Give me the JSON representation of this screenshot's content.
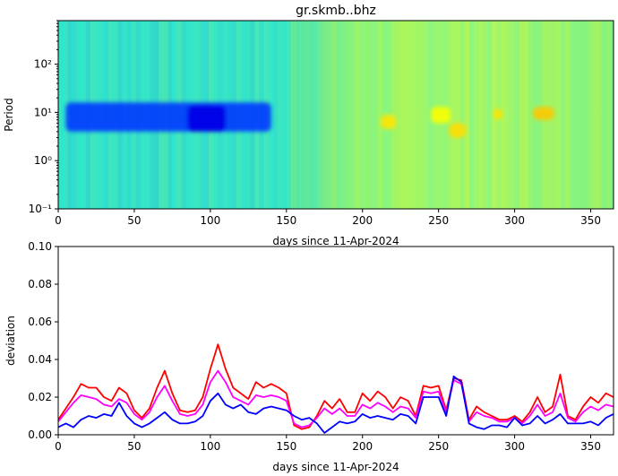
{
  "chart_data": [
    {
      "type": "heatmap",
      "title": "gr.skmb..bhz",
      "xlabel": "days since 11-Apr-2024",
      "ylabel": "Period",
      "xlim": [
        0,
        365
      ],
      "ylim": [
        0.1,
        800
      ],
      "yscale": "log",
      "xticks": [
        0,
        50,
        100,
        150,
        200,
        250,
        300,
        350
      ],
      "yticks": [
        {
          "value": 0.1,
          "label": "10⁻¹"
        },
        {
          "value": 1,
          "label": "10⁰"
        },
        {
          "value": 10,
          "label": "10¹"
        },
        {
          "value": 100,
          "label": "10²"
        }
      ],
      "colormap": "jet",
      "regions": [
        {
          "x": [
            5,
            140
          ],
          "period": [
            4,
            16
          ],
          "level": 0.18
        },
        {
          "x": [
            85,
            110
          ],
          "period": [
            4,
            14
          ],
          "level": 0.1
        },
        {
          "x": [
            212,
            222
          ],
          "period": [
            4.5,
            9
          ],
          "level": 0.65
        },
        {
          "x": [
            245,
            258
          ],
          "period": [
            6,
            13
          ],
          "level": 0.62
        },
        {
          "x": [
            257,
            268
          ],
          "period": [
            3,
            6
          ],
          "level": 0.66
        },
        {
          "x": [
            286,
            292
          ],
          "period": [
            7,
            12
          ],
          "level": 0.65
        },
        {
          "x": [
            312,
            326
          ],
          "period": [
            7,
            13
          ],
          "level": 0.68
        }
      ]
    },
    {
      "type": "line",
      "xlabel": "days since 11-Apr-2024",
      "ylabel": "deviation",
      "xlim": [
        0,
        365
      ],
      "ylim": [
        0,
        0.1
      ],
      "xticks": [
        0,
        50,
        100,
        150,
        200,
        250,
        300,
        350
      ],
      "yticks": [
        0.0,
        0.02,
        0.04,
        0.06,
        0.08,
        0.1
      ],
      "ytick_labels": [
        "0.00",
        "0.02",
        "0.04",
        "0.06",
        "0.08",
        "0.10"
      ],
      "x": [
        0,
        5,
        10,
        15,
        20,
        25,
        30,
        35,
        40,
        45,
        50,
        55,
        60,
        65,
        70,
        75,
        80,
        85,
        90,
        95,
        100,
        105,
        110,
        115,
        120,
        125,
        130,
        135,
        140,
        145,
        150,
        155,
        160,
        165,
        170,
        175,
        180,
        185,
        190,
        195,
        200,
        205,
        210,
        215,
        220,
        225,
        230,
        235,
        240,
        245,
        250,
        255,
        260,
        265,
        270,
        275,
        280,
        285,
        290,
        295,
        300,
        305,
        310,
        315,
        320,
        325,
        330,
        335,
        340,
        345,
        350,
        355,
        360,
        365
      ],
      "series": [
        {
          "color": "#ff0000",
          "values": [
            0.008,
            0.014,
            0.02,
            0.027,
            0.025,
            0.025,
            0.02,
            0.018,
            0.025,
            0.022,
            0.013,
            0.009,
            0.014,
            0.025,
            0.034,
            0.022,
            0.013,
            0.012,
            0.013,
            0.02,
            0.035,
            0.048,
            0.035,
            0.025,
            0.022,
            0.019,
            0.028,
            0.025,
            0.027,
            0.025,
            0.022,
            0.005,
            0.003,
            0.004,
            0.01,
            0.018,
            0.014,
            0.019,
            0.012,
            0.012,
            0.022,
            0.018,
            0.023,
            0.02,
            0.014,
            0.02,
            0.018,
            0.01,
            0.026,
            0.025,
            0.026,
            0.013,
            0.03,
            0.029,
            0.008,
            0.015,
            0.012,
            0.01,
            0.008,
            0.008,
            0.01,
            0.007,
            0.012,
            0.02,
            0.012,
            0.015,
            0.032,
            0.01,
            0.008,
            0.015,
            0.02,
            0.017,
            0.022,
            0.02
          ]
        },
        {
          "color": "#ff00ff",
          "values": [
            0.007,
            0.012,
            0.017,
            0.021,
            0.02,
            0.019,
            0.016,
            0.015,
            0.019,
            0.017,
            0.011,
            0.008,
            0.012,
            0.02,
            0.026,
            0.018,
            0.011,
            0.01,
            0.011,
            0.016,
            0.028,
            0.034,
            0.028,
            0.02,
            0.018,
            0.016,
            0.021,
            0.02,
            0.021,
            0.02,
            0.018,
            0.006,
            0.004,
            0.005,
            0.009,
            0.014,
            0.011,
            0.014,
            0.01,
            0.01,
            0.016,
            0.014,
            0.017,
            0.015,
            0.012,
            0.015,
            0.014,
            0.009,
            0.023,
            0.022,
            0.023,
            0.012,
            0.029,
            0.027,
            0.007,
            0.012,
            0.01,
            0.009,
            0.007,
            0.007,
            0.009,
            0.006,
            0.01,
            0.016,
            0.01,
            0.012,
            0.022,
            0.009,
            0.007,
            0.012,
            0.015,
            0.013,
            0.016,
            0.015
          ]
        },
        {
          "color": "#0000ff",
          "values": [
            0.004,
            0.006,
            0.004,
            0.008,
            0.01,
            0.009,
            0.011,
            0.01,
            0.017,
            0.01,
            0.006,
            0.004,
            0.006,
            0.009,
            0.012,
            0.008,
            0.006,
            0.006,
            0.007,
            0.01,
            0.018,
            0.022,
            0.016,
            0.014,
            0.016,
            0.012,
            0.011,
            0.014,
            0.015,
            0.014,
            0.013,
            0.01,
            0.008,
            0.009,
            0.006,
            0.001,
            0.004,
            0.007,
            0.006,
            0.007,
            0.011,
            0.009,
            0.01,
            0.009,
            0.008,
            0.011,
            0.01,
            0.006,
            0.02,
            0.02,
            0.02,
            0.01,
            0.031,
            0.028,
            0.006,
            0.004,
            0.003,
            0.005,
            0.005,
            0.004,
            0.009,
            0.005,
            0.006,
            0.01,
            0.006,
            0.008,
            0.011,
            0.006,
            0.006,
            0.006,
            0.007,
            0.005,
            0.009,
            0.011
          ]
        }
      ]
    }
  ]
}
